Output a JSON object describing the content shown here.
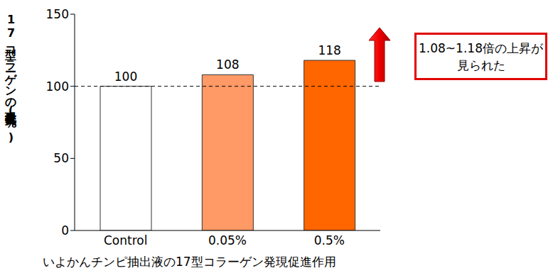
{
  "chart_data": {
    "type": "bar",
    "title": "いよかんチンピ抽出液の17型コラーゲン発現促進作用",
    "y_label": "17型コラーゲンの発現量変化(%)",
    "annotation": "1.08~1.18倍の上昇が見られた",
    "categories": [
      "Control",
      "0.05%",
      "0.5%"
    ],
    "values": [
      100,
      108,
      118
    ],
    "colors": [
      "#ffffff",
      "#ff9966",
      "#ff6600"
    ],
    "ylim": [
      0,
      150
    ],
    "yticks": [
      0,
      50,
      100,
      150
    ],
    "grid": false,
    "data_labels": true,
    "reference_line": 100
  }
}
